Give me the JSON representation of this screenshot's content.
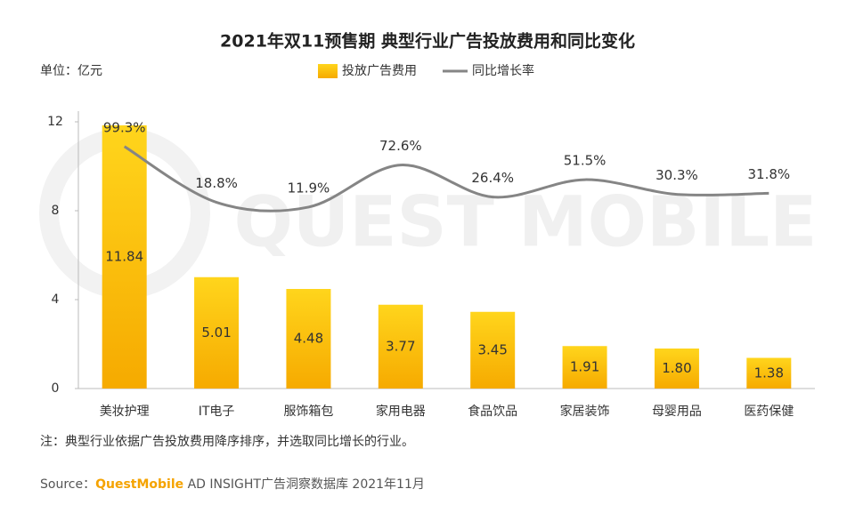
{
  "chart_data": {
    "type": "bar_line",
    "title": "2021年双11预售期 典型行业广告投放费用和同比变化",
    "unit_label": "单位：亿元",
    "watermark": "QUEST MOBILE",
    "categories": [
      "美妆护理",
      "IT电子",
      "服饰箱包",
      "家用电器",
      "食品饮品",
      "家居装饰",
      "母婴用品",
      "医药保健"
    ],
    "series": [
      {
        "name": "投放广告费用",
        "type": "bar",
        "color": "#fbbf0a",
        "values": [
          11.84,
          5.01,
          4.48,
          3.77,
          3.45,
          1.91,
          1.8,
          1.38
        ],
        "value_labels": [
          "11.84",
          "5.01",
          "4.48",
          "3.77",
          "3.45",
          "1.91",
          "1.80",
          "1.38"
        ]
      },
      {
        "name": "同比增长率",
        "type": "line",
        "axis": "y2",
        "color": "#858585",
        "values": [
          99.3,
          18.8,
          11.9,
          72.6,
          26.4,
          51.5,
          30.3,
          31.8
        ],
        "value_labels": [
          "99.3%",
          "18.8%",
          "11.9%",
          "72.6%",
          "26.4%",
          "51.5%",
          "30.3%",
          "31.8%"
        ]
      }
    ],
    "ylim": [
      0,
      12
    ],
    "yticks": [
      0,
      4,
      8,
      12
    ],
    "y2lim": [
      -250,
      135
    ],
    "grid": false,
    "legend": "top",
    "note": "注：典型行业依据广告投放费用降序排序，并选取同比增长的行业。",
    "source": {
      "label": "Source：",
      "brand": "QuestMobile",
      "text": " AD INSIGHT广告洞察数据库 2021年11月"
    }
  }
}
